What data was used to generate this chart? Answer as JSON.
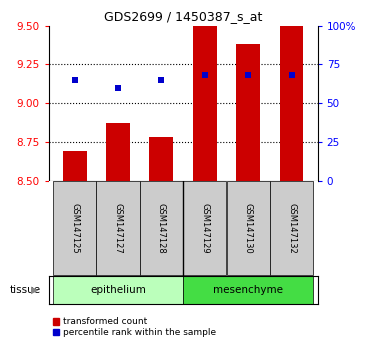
{
  "title": "GDS2699 / 1450387_s_at",
  "samples": [
    "GSM147125",
    "GSM147127",
    "GSM147128",
    "GSM147129",
    "GSM147130",
    "GSM147132"
  ],
  "red_values": [
    8.69,
    8.87,
    8.78,
    9.5,
    9.38,
    9.5
  ],
  "blue_values": [
    65,
    60,
    65,
    68,
    68,
    68
  ],
  "ymin": 8.5,
  "ymax": 9.5,
  "y2min": 0,
  "y2max": 100,
  "yticks": [
    8.5,
    8.75,
    9.0,
    9.25,
    9.5
  ],
  "y2ticks": [
    0,
    25,
    50,
    75,
    100
  ],
  "y2ticklabels": [
    "0",
    "25",
    "50",
    "75",
    "100%"
  ],
  "groups": [
    {
      "label": "epithelium",
      "start": 0,
      "end": 3,
      "color": "#bbffbb"
    },
    {
      "label": "mesenchyme",
      "start": 3,
      "end": 6,
      "color": "#44dd44"
    }
  ],
  "tissue_label": "tissue",
  "red_color": "#cc0000",
  "blue_color": "#0000cc",
  "bar_bottom": 8.5,
  "legend_red": "transformed count",
  "legend_blue": "percentile rank within the sample",
  "grid_dotted_at": [
    8.75,
    9.0,
    9.25
  ],
  "sample_box_color": "#cccccc",
  "bar_width": 0.55
}
